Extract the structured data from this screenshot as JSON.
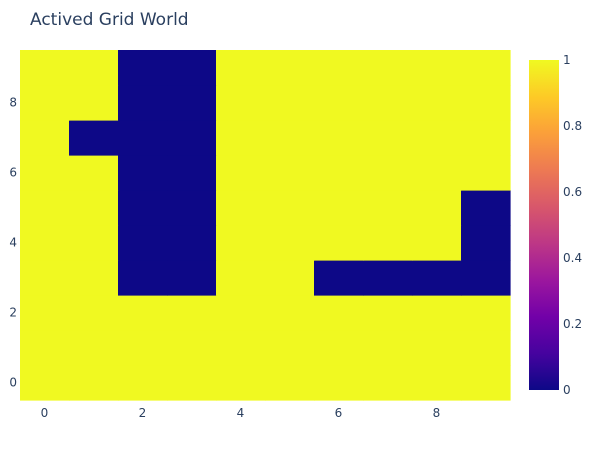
{
  "chart_data": {
    "type": "heatmap",
    "title": "Actived Grid World",
    "xlabel": "",
    "ylabel": "",
    "x": [
      0,
      1,
      2,
      3,
      4,
      5,
      6,
      7,
      8,
      9
    ],
    "y": [
      0,
      1,
      2,
      3,
      4,
      5,
      6,
      7,
      8,
      9
    ],
    "xlim": [
      -0.5,
      9.5
    ],
    "ylim": [
      -0.5,
      9.5
    ],
    "x_ticks": [
      "0",
      "2",
      "4",
      "6",
      "8"
    ],
    "y_ticks": [
      "0",
      "2",
      "4",
      "6",
      "8"
    ],
    "z": [
      [
        1,
        1,
        1,
        1,
        1,
        1,
        1,
        1,
        1,
        1
      ],
      [
        1,
        1,
        1,
        1,
        1,
        1,
        1,
        1,
        1,
        1
      ],
      [
        1,
        1,
        1,
        1,
        1,
        1,
        1,
        1,
        1,
        1
      ],
      [
        1,
        1,
        0,
        0,
        1,
        1,
        0,
        0,
        0,
        0
      ],
      [
        1,
        1,
        0,
        0,
        1,
        1,
        1,
        1,
        1,
        0
      ],
      [
        1,
        1,
        0,
        0,
        1,
        1,
        1,
        1,
        1,
        0
      ],
      [
        1,
        1,
        0,
        0,
        1,
        1,
        1,
        1,
        1,
        1
      ],
      [
        1,
        0,
        0,
        0,
        1,
        1,
        1,
        1,
        1,
        1
      ],
      [
        1,
        1,
        0,
        0,
        1,
        1,
        1,
        1,
        1,
        1
      ],
      [
        1,
        1,
        0,
        0,
        1,
        1,
        1,
        1,
        1,
        1
      ]
    ],
    "zlim": [
      0,
      1
    ],
    "colorscale": "Plasma",
    "colorbar_ticks": [
      "0",
      "0.2",
      "0.4",
      "0.6",
      "0.8",
      "1"
    ],
    "colors": {
      "low": "#0d0887",
      "high": "#f0f921",
      "text": "#2a3f5f"
    },
    "grid": false,
    "legend": "colorbar-right"
  }
}
